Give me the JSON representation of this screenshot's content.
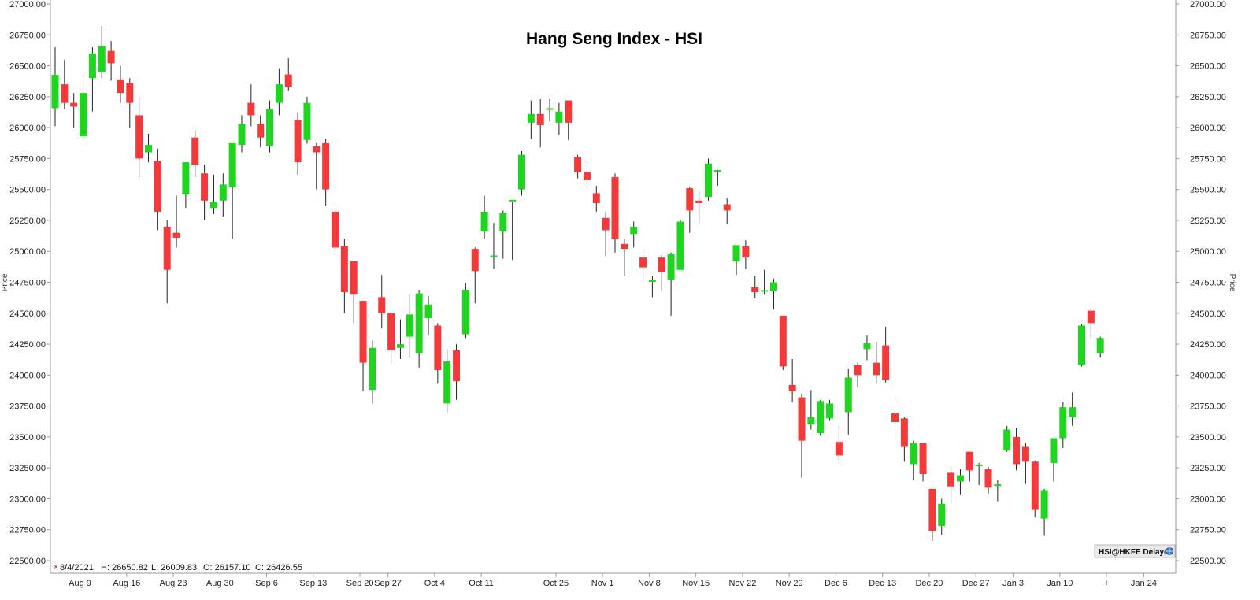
{
  "chart_data": {
    "type": "candlestick",
    "title": "Hang Seng Index - HSI",
    "ylabel": "Price",
    "ylim": [
      22500,
      27000
    ],
    "y_ticks": [
      "22500.00",
      "22750.00",
      "23000.00",
      "23250.00",
      "23500.00",
      "23750.00",
      "24000.00",
      "24250.00",
      "24500.00",
      "24750.00",
      "25000.00",
      "25250.00",
      "25500.00",
      "25750.00",
      "26000.00",
      "26250.00",
      "26500.00",
      "26750.00",
      "27000.00"
    ],
    "x_ticks": [
      {
        "label": "Aug 9",
        "idx": 3
      },
      {
        "label": "Aug 16",
        "idx": 8
      },
      {
        "label": "Aug 23",
        "idx": 13
      },
      {
        "label": "Aug 30",
        "idx": 18
      },
      {
        "label": "Sep 6",
        "idx": 23
      },
      {
        "label": "Sep 13",
        "idx": 28
      },
      {
        "label": "Sep 20",
        "idx": 33
      },
      {
        "label": "Sep 27",
        "idx": 36
      },
      {
        "label": "Oct 4",
        "idx": 41
      },
      {
        "label": "Oct 11",
        "idx": 46
      },
      {
        "label": "Oct 25",
        "idx": 54
      },
      {
        "label": "Nov 1",
        "idx": 59
      },
      {
        "label": "Nov 8",
        "idx": 64
      },
      {
        "label": "Nov 15",
        "idx": 69
      },
      {
        "label": "Nov 22",
        "idx": 74
      },
      {
        "label": "Nov 29",
        "idx": 79
      },
      {
        "label": "Dec 6",
        "idx": 84
      },
      {
        "label": "Dec 13",
        "idx": 89
      },
      {
        "label": "Dec 20",
        "idx": 94
      },
      {
        "label": "Dec 27",
        "idx": 99
      },
      {
        "label": "Jan 3",
        "idx": 103
      },
      {
        "label": "Jan 10",
        "idx": 108
      },
      {
        "label": "+",
        "idx": 113
      },
      {
        "label": "Jan 24",
        "idx": 117
      }
    ],
    "candles": [
      {
        "o": 26157,
        "h": 26651,
        "l": 26010,
        "c": 26427
      },
      {
        "o": 26350,
        "h": 26550,
        "l": 26150,
        "c": 26200
      },
      {
        "o": 26200,
        "h": 26280,
        "l": 26000,
        "c": 26170
      },
      {
        "o": 25930,
        "h": 26450,
        "l": 25900,
        "c": 26280
      },
      {
        "o": 26400,
        "h": 26650,
        "l": 26130,
        "c": 26600
      },
      {
        "o": 26450,
        "h": 26820,
        "l": 26400,
        "c": 26660
      },
      {
        "o": 26620,
        "h": 26700,
        "l": 26380,
        "c": 26520
      },
      {
        "o": 26390,
        "h": 26500,
        "l": 26200,
        "c": 26280
      },
      {
        "o": 26360,
        "h": 26400,
        "l": 26000,
        "c": 26200
      },
      {
        "o": 26100,
        "h": 26250,
        "l": 25600,
        "c": 25750
      },
      {
        "o": 25800,
        "h": 25950,
        "l": 25720,
        "c": 25860
      },
      {
        "o": 25730,
        "h": 25830,
        "l": 25170,
        "c": 25320
      },
      {
        "o": 25200,
        "h": 25250,
        "l": 24580,
        "c": 24850
      },
      {
        "o": 25150,
        "h": 25450,
        "l": 25030,
        "c": 25110
      },
      {
        "o": 25460,
        "h": 25720,
        "l": 25350,
        "c": 25720
      },
      {
        "o": 25920,
        "h": 25980,
        "l": 25600,
        "c": 25700
      },
      {
        "o": 25630,
        "h": 25700,
        "l": 25250,
        "c": 25410
      },
      {
        "o": 25350,
        "h": 25620,
        "l": 25300,
        "c": 25400
      },
      {
        "o": 25410,
        "h": 25630,
        "l": 25280,
        "c": 25540
      },
      {
        "o": 25520,
        "h": 25880,
        "l": 25100,
        "c": 25880
      },
      {
        "o": 25860,
        "h": 26100,
        "l": 25800,
        "c": 26030
      },
      {
        "o": 26200,
        "h": 26350,
        "l": 26010,
        "c": 26100
      },
      {
        "o": 26030,
        "h": 26100,
        "l": 25840,
        "c": 25920
      },
      {
        "o": 25850,
        "h": 26220,
        "l": 25800,
        "c": 26150
      },
      {
        "o": 26200,
        "h": 26480,
        "l": 26100,
        "c": 26350
      },
      {
        "o": 26430,
        "h": 26560,
        "l": 26300,
        "c": 26330
      },
      {
        "o": 26060,
        "h": 26120,
        "l": 25620,
        "c": 25720
      },
      {
        "o": 25900,
        "h": 26250,
        "l": 25870,
        "c": 26200
      },
      {
        "o": 25850,
        "h": 25880,
        "l": 25500,
        "c": 25800
      },
      {
        "o": 25880,
        "h": 25910,
        "l": 25370,
        "c": 25500
      },
      {
        "o": 25320,
        "h": 25400,
        "l": 24990,
        "c": 25030
      },
      {
        "o": 25040,
        "h": 25100,
        "l": 24500,
        "c": 24670
      },
      {
        "o": 24920,
        "h": 24920,
        "l": 24420,
        "c": 24650
      },
      {
        "o": 24600,
        "h": 24600,
        "l": 23870,
        "c": 24100
      },
      {
        "o": 23880,
        "h": 24280,
        "l": 23770,
        "c": 24220
      },
      {
        "o": 24630,
        "h": 24810,
        "l": 24380,
        "c": 24500
      },
      {
        "o": 24500,
        "h": 24500,
        "l": 24090,
        "c": 24200
      },
      {
        "o": 24220,
        "h": 24450,
        "l": 24130,
        "c": 24250
      },
      {
        "o": 24310,
        "h": 24650,
        "l": 24140,
        "c": 24490
      },
      {
        "o": 24180,
        "h": 24690,
        "l": 24060,
        "c": 24660
      },
      {
        "o": 24460,
        "h": 24640,
        "l": 24320,
        "c": 24570
      },
      {
        "o": 24400,
        "h": 24420,
        "l": 23930,
        "c": 24040
      },
      {
        "o": 23770,
        "h": 24210,
        "l": 23690,
        "c": 24110
      },
      {
        "o": 24200,
        "h": 24250,
        "l": 23800,
        "c": 23950
      },
      {
        "o": 24330,
        "h": 24740,
        "l": 24300,
        "c": 24690
      },
      {
        "o": 25020,
        "h": 25030,
        "l": 24580,
        "c": 24840
      },
      {
        "o": 25160,
        "h": 25450,
        "l": 25100,
        "c": 25320
      },
      {
        "o": 24960,
        "h": 25230,
        "l": 24860,
        "c": 24960
      },
      {
        "o": 25160,
        "h": 25330,
        "l": 24940,
        "c": 25310
      },
      {
        "o": 25400,
        "h": 25400,
        "l": 24930,
        "c": 25410
      },
      {
        "o": 25500,
        "h": 25810,
        "l": 25450,
        "c": 25780
      },
      {
        "o": 26040,
        "h": 26220,
        "l": 25910,
        "c": 26110
      },
      {
        "o": 26110,
        "h": 26230,
        "l": 25840,
        "c": 26020
      },
      {
        "o": 26150,
        "h": 26230,
        "l": 26050,
        "c": 26150
      },
      {
        "o": 26040,
        "h": 26200,
        "l": 25940,
        "c": 26130
      },
      {
        "o": 26220,
        "h": 26220,
        "l": 25900,
        "c": 26040
      },
      {
        "o": 25760,
        "h": 25780,
        "l": 25590,
        "c": 25640
      },
      {
        "o": 25640,
        "h": 25720,
        "l": 25520,
        "c": 25580
      },
      {
        "o": 25470,
        "h": 25530,
        "l": 25320,
        "c": 25390
      },
      {
        "o": 25270,
        "h": 25320,
        "l": 24960,
        "c": 25170
      },
      {
        "o": 25600,
        "h": 25630,
        "l": 24990,
        "c": 25100
      },
      {
        "o": 25060,
        "h": 25100,
        "l": 24800,
        "c": 25020
      },
      {
        "o": 25140,
        "h": 25240,
        "l": 25030,
        "c": 25200
      },
      {
        "o": 24950,
        "h": 25010,
        "l": 24740,
        "c": 24870
      },
      {
        "o": 24760,
        "h": 24800,
        "l": 24630,
        "c": 24760
      },
      {
        "o": 24950,
        "h": 24970,
        "l": 24680,
        "c": 24830
      },
      {
        "o": 24770,
        "h": 24990,
        "l": 24480,
        "c": 24980
      },
      {
        "o": 24850,
        "h": 25250,
        "l": 24850,
        "c": 25240
      },
      {
        "o": 25510,
        "h": 25520,
        "l": 25150,
        "c": 25330
      },
      {
        "o": 25410,
        "h": 25490,
        "l": 25220,
        "c": 25390
      },
      {
        "o": 25440,
        "h": 25750,
        "l": 25410,
        "c": 25710
      },
      {
        "o": 25650,
        "h": 25660,
        "l": 25530,
        "c": 25650
      },
      {
        "o": 25380,
        "h": 25430,
        "l": 25220,
        "c": 25330
      },
      {
        "o": 24920,
        "h": 25050,
        "l": 24810,
        "c": 25050
      },
      {
        "o": 25040,
        "h": 25090,
        "l": 24860,
        "c": 24950
      },
      {
        "o": 24710,
        "h": 24800,
        "l": 24620,
        "c": 24670
      },
      {
        "o": 24680,
        "h": 24850,
        "l": 24650,
        "c": 24680
      },
      {
        "o": 24680,
        "h": 24780,
        "l": 24530,
        "c": 24750
      },
      {
        "o": 24480,
        "h": 24480,
        "l": 24040,
        "c": 24070
      },
      {
        "o": 23920,
        "h": 24130,
        "l": 23780,
        "c": 23870
      },
      {
        "o": 23820,
        "h": 23850,
        "l": 23170,
        "c": 23470
      },
      {
        "o": 23600,
        "h": 23880,
        "l": 23560,
        "c": 23660
      },
      {
        "o": 23530,
        "h": 23800,
        "l": 23510,
        "c": 23790
      },
      {
        "o": 23650,
        "h": 23800,
        "l": 23630,
        "c": 23770
      },
      {
        "o": 23460,
        "h": 23590,
        "l": 23310,
        "c": 23350
      },
      {
        "o": 23700,
        "h": 24050,
        "l": 23520,
        "c": 23980
      },
      {
        "o": 24080,
        "h": 24100,
        "l": 23900,
        "c": 24000
      },
      {
        "o": 24210,
        "h": 24320,
        "l": 24120,
        "c": 24260
      },
      {
        "o": 24100,
        "h": 24270,
        "l": 23930,
        "c": 24000
      },
      {
        "o": 24240,
        "h": 24390,
        "l": 23940,
        "c": 23960
      },
      {
        "o": 23690,
        "h": 23810,
        "l": 23550,
        "c": 23620
      },
      {
        "o": 23650,
        "h": 23660,
        "l": 23300,
        "c": 23420
      },
      {
        "o": 23280,
        "h": 23470,
        "l": 23150,
        "c": 23450
      },
      {
        "o": 23450,
        "h": 23450,
        "l": 23140,
        "c": 23200
      },
      {
        "o": 23080,
        "h": 23080,
        "l": 22660,
        "c": 22740
      },
      {
        "o": 22780,
        "h": 23000,
        "l": 22710,
        "c": 22960
      },
      {
        "o": 23210,
        "h": 23260,
        "l": 22960,
        "c": 23100
      },
      {
        "o": 23140,
        "h": 23240,
        "l": 23030,
        "c": 23190
      },
      {
        "o": 23380,
        "h": 23380,
        "l": 23140,
        "c": 23230
      },
      {
        "o": 23270,
        "h": 23290,
        "l": 23110,
        "c": 23270
      },
      {
        "o": 23240,
        "h": 23260,
        "l": 23040,
        "c": 23090
      },
      {
        "o": 23110,
        "h": 23150,
        "l": 22980,
        "c": 23110
      },
      {
        "o": 23390,
        "h": 23590,
        "l": 23380,
        "c": 23560
      },
      {
        "o": 23500,
        "h": 23570,
        "l": 23230,
        "c": 23280
      },
      {
        "o": 23420,
        "h": 23450,
        "l": 23120,
        "c": 23300
      },
      {
        "o": 23300,
        "h": 23310,
        "l": 22850,
        "c": 22910
      },
      {
        "o": 22840,
        "h": 23080,
        "l": 22700,
        "c": 23070
      },
      {
        "o": 23290,
        "h": 23490,
        "l": 23140,
        "c": 23490
      },
      {
        "o": 23490,
        "h": 23780,
        "l": 23410,
        "c": 23740
      },
      {
        "o": 23660,
        "h": 23860,
        "l": 23590,
        "c": 23740
      },
      {
        "o": 24080,
        "h": 24410,
        "l": 24070,
        "c": 24400
      },
      {
        "o": 24520,
        "h": 24530,
        "l": 24290,
        "c": 24420
      },
      {
        "o": 24180,
        "h": 24310,
        "l": 24140,
        "c": 24300
      }
    ]
  },
  "info_bar": {
    "marker": "×",
    "date": "8/4/2021",
    "h": "H: 26650.82",
    "l": "L: 26009.83",
    "o": "O: 26157.10",
    "c": "C: 26426.55"
  },
  "badge": {
    "text": "HSI@HKFE Delayed",
    "icon": "globe-icon"
  },
  "colors": {
    "up": "#1fd51f",
    "down": "#f23a3a",
    "wick": "#222222",
    "axis": "#9a9a9a"
  }
}
